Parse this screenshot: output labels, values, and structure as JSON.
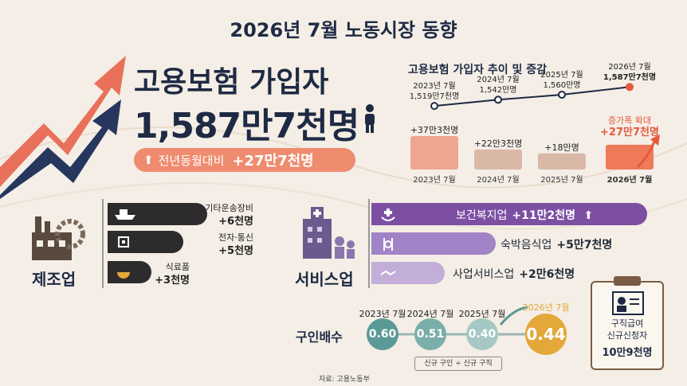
{
  "title": "2026년 7월 노동시장 동향",
  "hero": {
    "label": "고용보험 가입자",
    "value": "1,587만7천명",
    "pill_label": "전년동월대비",
    "pill_value": "+27만7천명"
  },
  "chart_data": [
    {
      "type": "line",
      "title": "고용보험 가입자 추이 및 증감",
      "categories": [
        "2023년 7월",
        "2024년 7월",
        "2025년 7월",
        "2026년 7월"
      ],
      "values": [
        1519.7,
        1542,
        1560,
        1587.7
      ],
      "value_labels": [
        "1,519만7천명",
        "1,542만명",
        "1,560만명",
        "1,587만7천명"
      ],
      "point_labels": [
        "2023년 7월",
        "2024년 7월",
        "2025년 7월",
        "2026년 7월"
      ],
      "highlight_index": 3
    },
    {
      "type": "bar",
      "categories": [
        "2023년 7월",
        "2024년 7월",
        "2025년 7월",
        "2026년 7월"
      ],
      "values": [
        37.3,
        22.3,
        18,
        27.7
      ],
      "value_labels": [
        "+37만3천명",
        "+22만3천명",
        "+18만명",
        "+27만7천명"
      ],
      "annotation": "증가폭 확대",
      "highlight_index": 3
    },
    {
      "type": "line",
      "title": "구인배수",
      "categories": [
        "2023년 7월",
        "2024년 7월",
        "2025년 7월",
        "2026년 7월"
      ],
      "values": [
        0.6,
        0.51,
        0.4,
        0.44
      ],
      "value_labels": [
        "0.60",
        "0.51",
        "0.40",
        "0.44"
      ],
      "note": "신규 구인 ÷ 신규 구직"
    }
  ],
  "manufacturing": {
    "heading": "제조업",
    "items": [
      {
        "name": "기타운송장비",
        "value": "+6천명",
        "icon": "ship-icon"
      },
      {
        "name": "전자·통신",
        "value": "+5천명",
        "icon": "chip-icon"
      },
      {
        "name": "식료품",
        "value": "+3천명",
        "icon": "food-bowl-icon"
      }
    ]
  },
  "services": {
    "heading": "서비스업",
    "items": [
      {
        "name": "보건복지업",
        "value": "+11만2천명",
        "color": "#7c4fa3",
        "icon": "care-hands-icon"
      },
      {
        "name": "숙박음식업",
        "value": "+5만7천명",
        "color": "#a183c7",
        "icon": "utensils-icon"
      },
      {
        "name": "사업서비스업",
        "value": "+2만6천명",
        "color": "#c2aed9",
        "icon": "handshake-icon"
      }
    ]
  },
  "ratio": {
    "title": "구인배수",
    "note": "신규 구인 ÷ 신규 구직"
  },
  "claims": {
    "label_line1": "구직급여",
    "label_line2": "신규신청자",
    "value": "10만9천명"
  },
  "source": "자료: 고용노동부",
  "colors": {
    "navy": "#1e2a44",
    "coral": "#ef8b6f",
    "accent_red": "#e45a3c",
    "teal": "#5a9a96",
    "gold": "#e4a73a",
    "purple": "#7c4fa3"
  }
}
